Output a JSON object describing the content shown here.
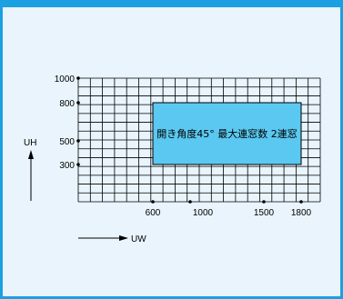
{
  "diagram": {
    "y_axis_label": "UH",
    "x_axis_label": "UW",
    "y_ticks": [
      {
        "label": "1000"
      },
      {
        "label": "800"
      },
      {
        "label": "500"
      },
      {
        "label": "300"
      }
    ],
    "x_ticks": [
      {
        "label": "600"
      },
      {
        "label": "1000"
      },
      {
        "label": "1500"
      },
      {
        "label": "1800"
      }
    ],
    "range_label": "開き角度45°  最大連窓数 2連窓",
    "colors": {
      "frame_border": "#1ba0e2",
      "background": "#e9f4fc",
      "range_fill": "#5ac8f0",
      "grid": "#000000"
    }
  }
}
